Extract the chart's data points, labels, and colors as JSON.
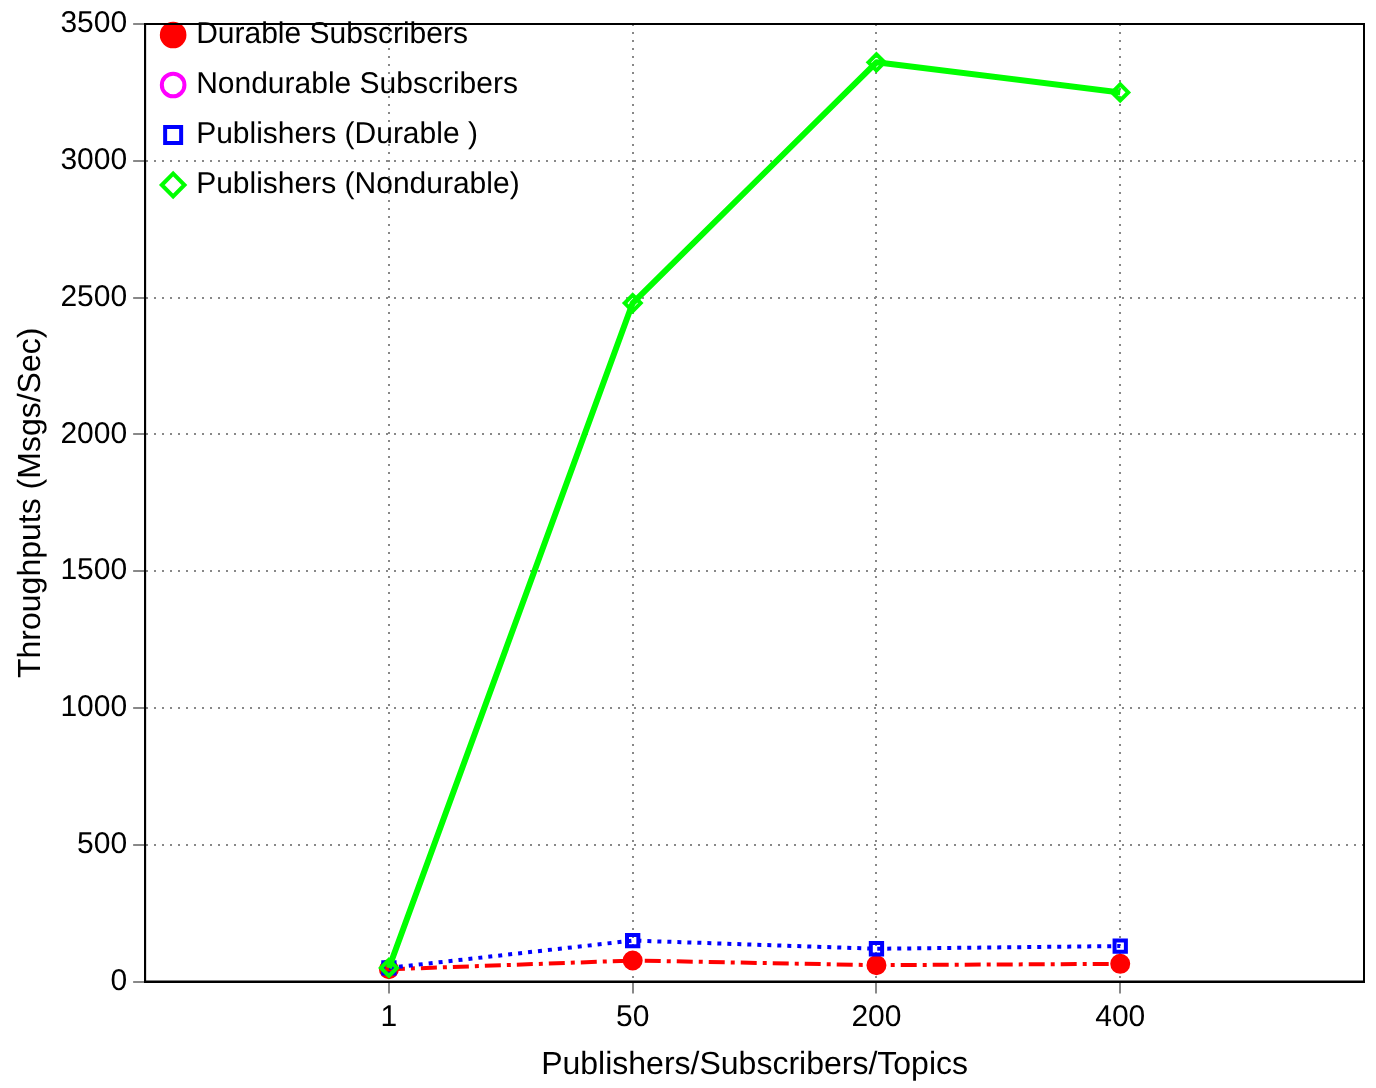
{
  "chart_data": {
    "type": "line",
    "xlabel": "Publishers/Subscribers/Topics",
    "ylabel": "Throughputs (Msgs/Sec)",
    "categories": [
      "1",
      "50",
      "200",
      "400"
    ],
    "ylim": [
      0,
      3500
    ],
    "yticks": [
      0,
      500,
      1000,
      1500,
      2000,
      2500,
      3000,
      3500
    ],
    "grid": true,
    "legend": "top left",
    "series": [
      {
        "name": "Durable Subscribers",
        "color": "#ff0000",
        "values": [
          45,
          77,
          60,
          65
        ],
        "marker": "circle",
        "line_style": "dashdot"
      },
      {
        "name": "Nondurable Subscribers",
        "color": "#ff00ff",
        "values": [
          null,
          null,
          null,
          null
        ],
        "marker": "circle",
        "line_style": "dashed"
      },
      {
        "name": "Publishers (Durable )",
        "color": "#0000ff",
        "values": [
          50,
          150,
          120,
          130
        ],
        "marker": "square",
        "line_style": "dotted"
      },
      {
        "name": "Publishers (Nondurable)",
        "color": "#00ff00",
        "values": [
          50,
          2480,
          3360,
          3250
        ],
        "marker": "diamond",
        "line_style": "solid"
      }
    ]
  }
}
